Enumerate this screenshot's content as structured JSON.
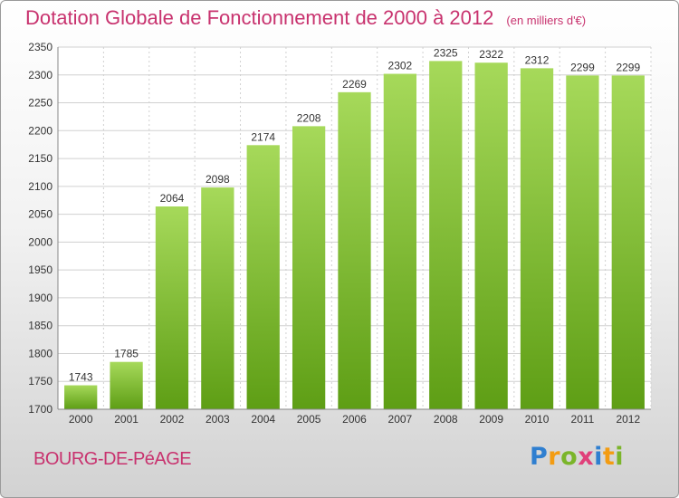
{
  "header": {
    "title": "Dotation Globale de Fonctionnement de 2000 à 2012",
    "subtitle": "(en milliers d'€)"
  },
  "footer": {
    "city": "BOURG-DE-PéAGE",
    "logo_letters": [
      "P",
      "r",
      "o",
      "x",
      "i",
      "t",
      "i"
    ],
    "logo_colors": [
      "#2f7fd0",
      "#f39c12",
      "#7bb52a",
      "#e0407a",
      "#2f7fd0",
      "#f39c12",
      "#7bb52a"
    ]
  },
  "chart_data": {
    "type": "bar",
    "categories": [
      "2000",
      "2001",
      "2002",
      "2003",
      "2004",
      "2005",
      "2006",
      "2007",
      "2008",
      "2009",
      "2010",
      "2011",
      "2012"
    ],
    "values": [
      1743,
      1785,
      2064,
      2098,
      2174,
      2208,
      2269,
      2302,
      2325,
      2322,
      2312,
      2299,
      2299
    ],
    "title": "Dotation Globale de Fonctionnement de 2000 à 2012",
    "ylim": [
      1700,
      2350
    ],
    "yticks": [
      1700,
      1750,
      1800,
      1850,
      1900,
      1950,
      2000,
      2050,
      2100,
      2150,
      2200,
      2250,
      2300,
      2350
    ],
    "grid": true,
    "colors": {
      "bar_top": "#a6d95a",
      "bar_bottom": "#5e9e15",
      "grid": "#d0d0d0",
      "label": "#333333"
    }
  }
}
